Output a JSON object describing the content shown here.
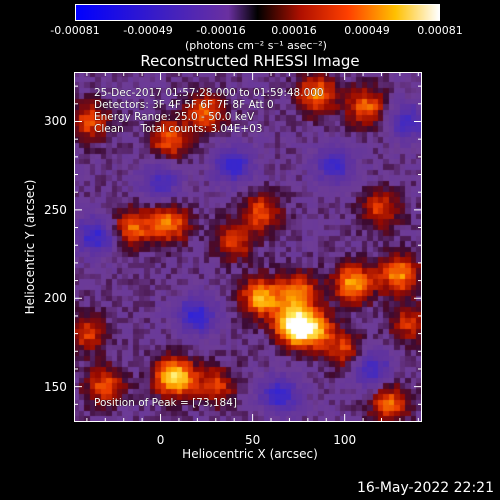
{
  "colorbar": {
    "ticks": [
      "-0.00081",
      "-0.00049",
      "-0.00016",
      "0.00016",
      "0.00049",
      "0.00081"
    ],
    "unit": "(photons cm⁻² s⁻¹ asec⁻²)"
  },
  "annotations": {
    "time": "25-Dec-2017 01:57:28.000 to 01:59:48.000",
    "detectors": "Detectors: 3F 4F 5F 6F 7F 8F Att 0",
    "energy": "Energy Range: 25.0 - 50.0 keV",
    "clean": "Clean     Total counts: 3.04E+03",
    "peak": "Position of Peak = [73,184]"
  },
  "timestamp": "16-May-2022 22:21",
  "chart_data": {
    "type": "heatmap",
    "title": "Reconstructed RHESSI Image",
    "xlabel": "Heliocentric X (arcsec)",
    "ylabel": "Heliocentric Y (arcsec)",
    "xlim": [
      -47,
      142
    ],
    "ylim": [
      130,
      328
    ],
    "xticks": [
      0,
      50,
      100
    ],
    "yticks": [
      150,
      200,
      250,
      300
    ],
    "zlim": [
      -0.00081,
      0.00081
    ],
    "colormap": "RHESSI blue-white-red",
    "peak": [
      73,
      184
    ],
    "sources": [
      {
        "x": 73,
        "y": 184,
        "amp": 1.0
      },
      {
        "x": 8,
        "y": 155,
        "amp": 0.9
      },
      {
        "x": 55,
        "y": 200,
        "amp": 0.75
      },
      {
        "x": 105,
        "y": 208,
        "amp": 0.7
      },
      {
        "x": 130,
        "y": 213,
        "amp": 0.65
      },
      {
        "x": 75,
        "y": 203,
        "amp": 0.6
      },
      {
        "x": 84,
        "y": 182,
        "amp": 0.6
      },
      {
        "x": -15,
        "y": 240,
        "amp": 0.55
      },
      {
        "x": 5,
        "y": 242,
        "amp": 0.6
      },
      {
        "x": 5,
        "y": 290,
        "amp": 0.55
      },
      {
        "x": 25,
        "y": 305,
        "amp": 0.55
      },
      {
        "x": 85,
        "y": 315,
        "amp": 0.6
      },
      {
        "x": 112,
        "y": 308,
        "amp": 0.55
      },
      {
        "x": 55,
        "y": 248,
        "amp": 0.5
      },
      {
        "x": 40,
        "y": 232,
        "amp": 0.45
      },
      {
        "x": -38,
        "y": 300,
        "amp": 0.5
      },
      {
        "x": -30,
        "y": 150,
        "amp": 0.5
      },
      {
        "x": -40,
        "y": 180,
        "amp": 0.45
      },
      {
        "x": 125,
        "y": 140,
        "amp": 0.55
      },
      {
        "x": 30,
        "y": 150,
        "amp": 0.45
      },
      {
        "x": 120,
        "y": 250,
        "amp": 0.45
      },
      {
        "x": 100,
        "y": 170,
        "amp": 0.45
      },
      {
        "x": 135,
        "y": 185,
        "amp": 0.4
      },
      {
        "x": 20,
        "y": 190,
        "amp": -0.6
      },
      {
        "x": -35,
        "y": 235,
        "amp": -0.55
      },
      {
        "x": 65,
        "y": 145,
        "amp": -0.55
      },
      {
        "x": 115,
        "y": 160,
        "amp": -0.5
      },
      {
        "x": 95,
        "y": 275,
        "amp": -0.5
      },
      {
        "x": 40,
        "y": 275,
        "amp": -0.55
      },
      {
        "x": 0,
        "y": 265,
        "amp": -0.45
      },
      {
        "x": 135,
        "y": 300,
        "amp": -0.45
      }
    ]
  }
}
